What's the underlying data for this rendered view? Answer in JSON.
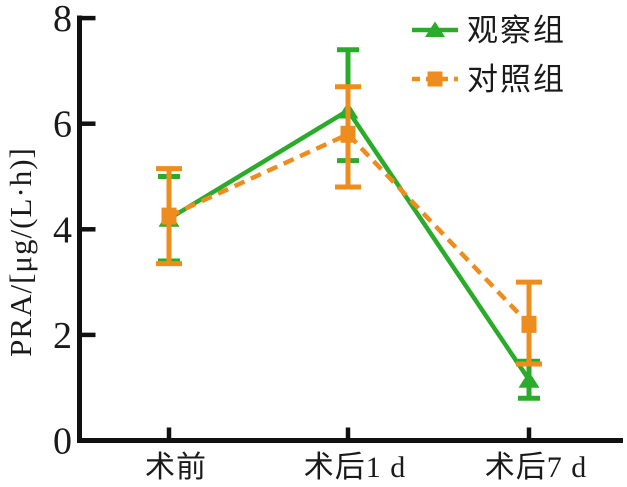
{
  "chart_data": {
    "type": "line",
    "title": "",
    "xlabel": "",
    "ylabel": "PRA/[μg/(L·h)]",
    "categories": [
      "术前",
      "术后1 d",
      "术后7 d"
    ],
    "y_ticks": [
      0,
      2,
      4,
      6,
      8
    ],
    "ylim": [
      0,
      8
    ],
    "grid": false,
    "legend_position": "top-right",
    "axis_color": "#111111",
    "text_color": "#1a1a1a",
    "series": [
      {
        "name": "观察组",
        "marker": "triangle",
        "line_style": "solid",
        "color": "#2aab2a",
        "values": [
          4.2,
          6.25,
          1.15
        ],
        "error_upper": [
          5.0,
          7.4,
          1.5
        ],
        "error_lower": [
          3.4,
          5.3,
          0.8
        ]
      },
      {
        "name": "对照组",
        "marker": "square",
        "line_style": "dashed",
        "color": "#ee8d1d",
        "values": [
          4.25,
          5.8,
          2.2
        ],
        "error_upper": [
          5.15,
          6.7,
          3.0
        ],
        "error_lower": [
          3.35,
          4.8,
          1.45
        ]
      }
    ]
  }
}
